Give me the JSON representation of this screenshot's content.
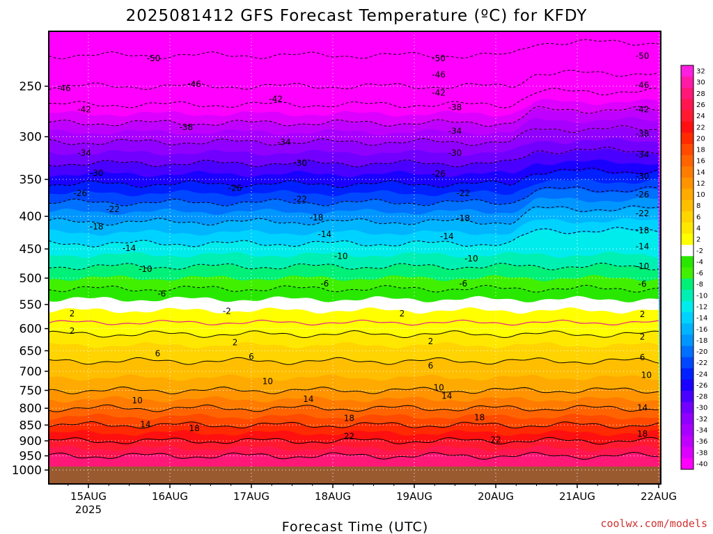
{
  "chart_data": {
    "type": "heatmap",
    "title": "2025081412 GFS Forecast Temperature (ºC) for KFDY",
    "xlabel": "Forecast Time (UTC)",
    "ylabel": "",
    "x_ticks": [
      "15AUG",
      "16AUG",
      "17AUG",
      "18AUG",
      "19AUG",
      "20AUG",
      "21AUG",
      "22AUG"
    ],
    "x_tick_sub": [
      "2025",
      "",
      "",
      "",
      "",
      "",
      "",
      ""
    ],
    "xlim_days": [
      14.5,
      22.0
    ],
    "y_ticks": [
      250,
      300,
      350,
      400,
      450,
      500,
      550,
      600,
      650,
      700,
      750,
      800,
      850,
      900,
      950,
      1000
    ],
    "y_tick_labels": [
      "250",
      "300",
      "350",
      "400",
      "450",
      "500",
      "550",
      "600",
      "650",
      "700",
      "750",
      "800",
      "850",
      "900",
      "950",
      "1000"
    ],
    "ylim_hpa": [
      200,
      1025
    ],
    "y_scale": "log-pressure",
    "grid": true,
    "colorbar_levels": [
      32,
      30,
      28,
      26,
      24,
      22,
      20,
      18,
      16,
      14,
      12,
      10,
      8,
      6,
      4,
      2,
      -2,
      -4,
      -6,
      -8,
      -10,
      -12,
      -14,
      -16,
      -18,
      -20,
      -22,
      -24,
      -26,
      -28,
      -30,
      -32,
      -34,
      -36,
      -38,
      -40
    ],
    "colorbar_labels": [
      "32",
      "30",
      "28",
      "26",
      "24",
      "22",
      "20",
      "18",
      "16",
      "14",
      "12",
      "10",
      "8",
      "6",
      "4",
      "2",
      "-2",
      "-4",
      "-6",
      "-8",
      "-10",
      "-12",
      "-14",
      "-16",
      "-18",
      "-20",
      "-22",
      "-24",
      "-26",
      "-28",
      "-30",
      "-32",
      "-34",
      "-36",
      "-38",
      "-40"
    ],
    "colorbar_colors": [
      "#ff1fe0",
      "#ff1aa8",
      "#ff1878",
      "#ff1650",
      "#ff1a30",
      "#ff1010",
      "#ff2a00",
      "#ff4a00",
      "#ff6400",
      "#ff7c00",
      "#ff9400",
      "#ffaa00",
      "#ffbe00",
      "#ffd400",
      "#ffe800",
      "#ffff00",
      "#ffffff",
      "#28e800",
      "#40f000",
      "#00f078",
      "#00f0b4",
      "#00ecec",
      "#00d2ff",
      "#00b4ff",
      "#0096ff",
      "#0070ff",
      "#0048ff",
      "#0020ff",
      "#1a00ff",
      "#4a00ff",
      "#7200ff",
      "#9000ff",
      "#a800ff",
      "#c000ff",
      "#dc00ff",
      "#ff00ff"
    ],
    "profile": [
      {
        "p": 1000,
        "t": 27
      },
      {
        "p": 950,
        "t": 26
      },
      {
        "p": 900,
        "t": 22
      },
      {
        "p": 850,
        "t": 18
      },
      {
        "p": 800,
        "t": 14
      },
      {
        "p": 750,
        "t": 10
      },
      {
        "p": 700,
        "t": 7
      },
      {
        "p": 650,
        "t": 5
      },
      {
        "p": 600,
        "t": 1
      },
      {
        "p": 550,
        "t": -3
      },
      {
        "p": 500,
        "t": -8
      },
      {
        "p": 450,
        "t": -13
      },
      {
        "p": 400,
        "t": -19
      },
      {
        "p": 350,
        "t": -27
      },
      {
        "p": 300,
        "t": -35
      },
      {
        "p": 250,
        "t": -46
      },
      {
        "p": 200,
        "t": -54
      }
    ],
    "contour_labels": [
      {
        "text": "-50",
        "x": 15.8,
        "p": 226
      },
      {
        "text": "-50",
        "x": 19.3,
        "p": 226
      },
      {
        "text": "-50",
        "x": 21.8,
        "p": 224
      },
      {
        "text": "-46",
        "x": 14.7,
        "p": 252
      },
      {
        "text": "-46",
        "x": 16.3,
        "p": 248
      },
      {
        "text": "-46",
        "x": 19.3,
        "p": 240
      },
      {
        "text": "-46",
        "x": 21.8,
        "p": 249
      },
      {
        "text": "-42",
        "x": 14.95,
        "p": 272
      },
      {
        "text": "-42",
        "x": 17.3,
        "p": 262
      },
      {
        "text": "-42",
        "x": 19.3,
        "p": 256
      },
      {
        "text": "-42",
        "x": 21.8,
        "p": 272
      },
      {
        "text": "-38",
        "x": 16.2,
        "p": 290
      },
      {
        "text": "-38",
        "x": 19.5,
        "p": 270
      },
      {
        "text": "-38",
        "x": 21.8,
        "p": 297
      },
      {
        "text": "-34",
        "x": 14.95,
        "p": 318
      },
      {
        "text": "-34",
        "x": 17.4,
        "p": 306
      },
      {
        "text": "-34",
        "x": 19.5,
        "p": 294
      },
      {
        "text": "-34",
        "x": 21.8,
        "p": 320
      },
      {
        "text": "-30",
        "x": 15.1,
        "p": 342
      },
      {
        "text": "-30",
        "x": 17.6,
        "p": 330
      },
      {
        "text": "-30",
        "x": 19.5,
        "p": 318
      },
      {
        "text": "-30",
        "x": 21.8,
        "p": 346
      },
      {
        "text": "-26",
        "x": 14.9,
        "p": 368
      },
      {
        "text": "-26",
        "x": 16.8,
        "p": 361
      },
      {
        "text": "-26",
        "x": 19.3,
        "p": 343
      },
      {
        "text": "-26",
        "x": 21.8,
        "p": 370
      },
      {
        "text": "-22",
        "x": 15.3,
        "p": 390
      },
      {
        "text": "-22",
        "x": 17.6,
        "p": 376
      },
      {
        "text": "-22",
        "x": 19.6,
        "p": 368
      },
      {
        "text": "-22",
        "x": 21.8,
        "p": 396
      },
      {
        "text": "-18",
        "x": 15.1,
        "p": 415
      },
      {
        "text": "-18",
        "x": 17.8,
        "p": 402
      },
      {
        "text": "-18",
        "x": 19.6,
        "p": 403
      },
      {
        "text": "-18",
        "x": 21.8,
        "p": 421
      },
      {
        "text": "-14",
        "x": 15.5,
        "p": 449
      },
      {
        "text": "-14",
        "x": 17.9,
        "p": 427
      },
      {
        "text": "-14",
        "x": 19.4,
        "p": 430
      },
      {
        "text": "-14",
        "x": 21.8,
        "p": 446
      },
      {
        "text": "-10",
        "x": 15.7,
        "p": 484
      },
      {
        "text": "-10",
        "x": 18.1,
        "p": 462
      },
      {
        "text": "-10",
        "x": 19.7,
        "p": 466
      },
      {
        "text": "-10",
        "x": 21.8,
        "p": 479
      },
      {
        "text": "-6",
        "x": 15.9,
        "p": 529
      },
      {
        "text": "-6",
        "x": 17.9,
        "p": 510
      },
      {
        "text": "-6",
        "x": 19.6,
        "p": 510
      },
      {
        "text": "-6",
        "x": 21.8,
        "p": 511
      },
      {
        "text": "-2",
        "x": 16.7,
        "p": 563
      },
      {
        "text": "2",
        "x": 14.8,
        "p": 568
      },
      {
        "text": "2",
        "x": 18.85,
        "p": 568
      },
      {
        "text": "2",
        "x": 21.8,
        "p": 570
      },
      {
        "text": "2",
        "x": 14.8,
        "p": 605
      },
      {
        "text": "2",
        "x": 16.8,
        "p": 631
      },
      {
        "text": "2",
        "x": 19.2,
        "p": 628
      },
      {
        "text": "2",
        "x": 21.8,
        "p": 618
      },
      {
        "text": "6",
        "x": 15.85,
        "p": 657
      },
      {
        "text": "6",
        "x": 17.0,
        "p": 664
      },
      {
        "text": "6",
        "x": 19.2,
        "p": 686
      },
      {
        "text": "6",
        "x": 21.8,
        "p": 666
      },
      {
        "text": "10",
        "x": 15.6,
        "p": 778
      },
      {
        "text": "10",
        "x": 17.2,
        "p": 726
      },
      {
        "text": "10",
        "x": 19.3,
        "p": 743
      },
      {
        "text": "10",
        "x": 21.85,
        "p": 710
      },
      {
        "text": "14",
        "x": 15.7,
        "p": 848
      },
      {
        "text": "14",
        "x": 17.7,
        "p": 774
      },
      {
        "text": "14",
        "x": 19.4,
        "p": 765
      },
      {
        "text": "14",
        "x": 21.8,
        "p": 799
      },
      {
        "text": "18",
        "x": 16.3,
        "p": 860
      },
      {
        "text": "18",
        "x": 18.2,
        "p": 829
      },
      {
        "text": "18",
        "x": 19.8,
        "p": 827
      },
      {
        "text": "18",
        "x": 21.8,
        "p": 878
      },
      {
        "text": "22",
        "x": 18.2,
        "p": 885
      },
      {
        "text": "22",
        "x": 20.0,
        "p": 897
      }
    ]
  },
  "credit": "coolwx.com/models"
}
